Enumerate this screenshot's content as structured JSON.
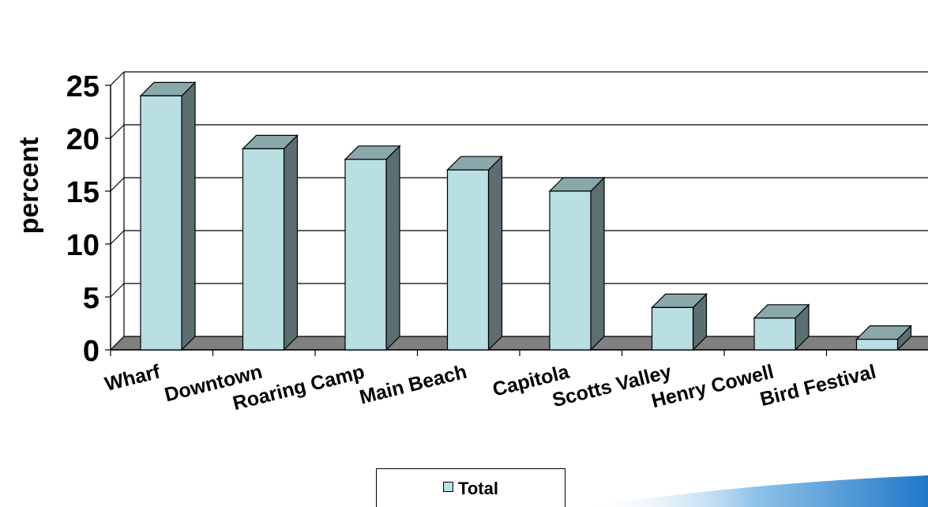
{
  "chart_data": {
    "type": "bar",
    "style": "3d-column",
    "categories": [
      "Wharf",
      "Downtown",
      "Roaring Camp",
      "Main Beach",
      "Capitola",
      "Scotts Valley",
      "Henry Cowell",
      "Bird Festival"
    ],
    "series": [
      {
        "name": "Total",
        "values": [
          24,
          19,
          18,
          17,
          15,
          4,
          3,
          1
        ]
      }
    ],
    "ylabel": "percent",
    "xlabel": "",
    "title": "",
    "ylim": [
      0,
      25
    ],
    "yticks": [
      "0",
      "5",
      "10",
      "15",
      "20",
      "25"
    ],
    "grid": true,
    "legend_position": "bottom",
    "colors": {
      "bar_front": "#b9dfe3",
      "bar_side": "#5c6e6f",
      "bar_top": "#8aa7aa",
      "floor": "#808080"
    }
  }
}
